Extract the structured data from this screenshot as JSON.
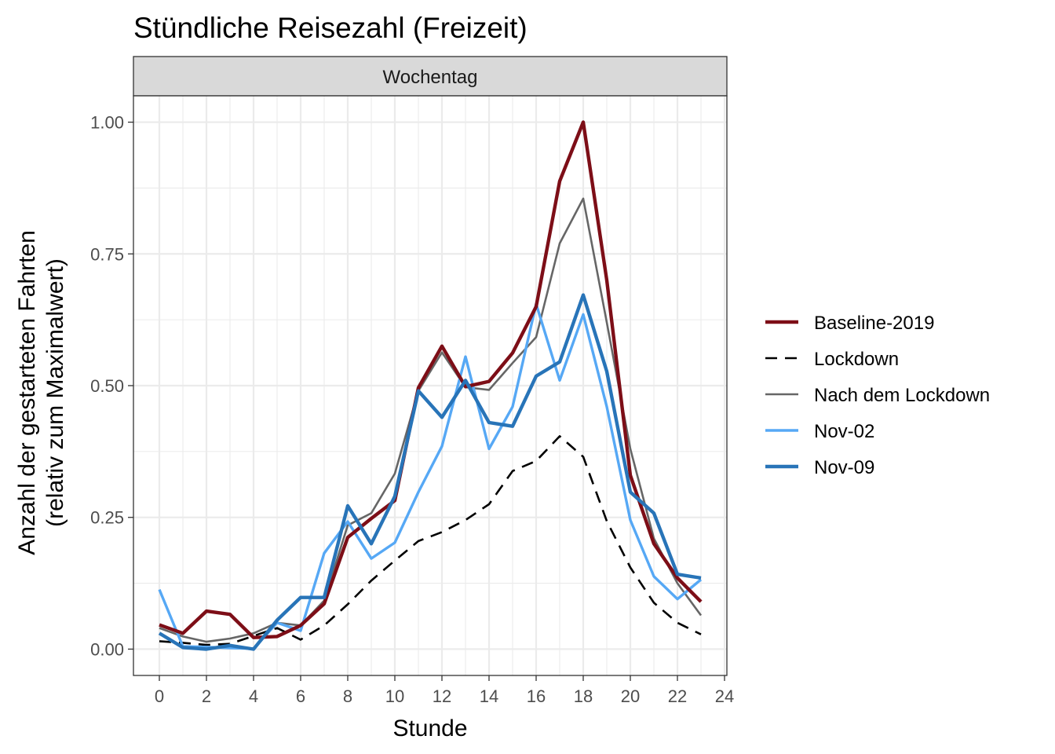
{
  "chart_data": {
    "type": "line",
    "title": "Stündliche Reisezahl (Freizeit)",
    "facet_label": "Wochentag",
    "xlabel": "Stunde",
    "ylabel_lines": [
      "Anzahl der gestarteten Fahrten",
      "(relativ zum Maximalwert)"
    ],
    "xlim": [
      -1.1,
      24.1
    ],
    "ylim": [
      -0.05,
      1.05
    ],
    "x_ticks": [
      0,
      2,
      4,
      6,
      8,
      10,
      12,
      14,
      16,
      18,
      20,
      22,
      24
    ],
    "y_ticks": [
      0,
      0.25,
      0.5,
      0.75,
      1.0
    ],
    "y_tick_labels": [
      "0.00",
      "0.25",
      "0.50",
      "0.75",
      "1.00"
    ],
    "grid": true,
    "legend_position": "right",
    "x": [
      0,
      1,
      2,
      3,
      4,
      5,
      6,
      7,
      8,
      9,
      10,
      11,
      12,
      13,
      14,
      15,
      16,
      17,
      18,
      19,
      20,
      21,
      22,
      23
    ],
    "series": [
      {
        "name": "Lockdown",
        "color": "#000000",
        "style": "dashed",
        "values": [
          0.015,
          0.012,
          0.008,
          0.01,
          0.025,
          0.04,
          0.018,
          0.045,
          0.085,
          0.13,
          0.168,
          0.205,
          0.222,
          0.245,
          0.275,
          0.338,
          0.357,
          0.404,
          0.365,
          0.243,
          0.155,
          0.088,
          0.05,
          0.028
        ]
      },
      {
        "name": "Nach dem Lockdown",
        "color": "#666666",
        "style": "solid-thin",
        "values": [
          0.04,
          0.024,
          0.014,
          0.02,
          0.03,
          0.05,
          0.045,
          0.092,
          0.235,
          0.258,
          0.333,
          0.49,
          0.563,
          0.497,
          0.492,
          0.543,
          0.592,
          0.77,
          0.855,
          0.62,
          0.38,
          0.21,
          0.125,
          0.064
        ]
      },
      {
        "name": "Nov-02",
        "color": "#56a8f5",
        "style": "solid",
        "values": [
          0.113,
          0.005,
          0.004,
          0.002,
          0.001,
          0.05,
          0.035,
          0.182,
          0.242,
          0.172,
          0.202,
          0.298,
          0.385,
          0.555,
          0.38,
          0.46,
          0.655,
          0.51,
          0.635,
          0.46,
          0.245,
          0.138,
          0.095,
          0.132
        ]
      },
      {
        "name": "Baseline-2019",
        "color": "#7d0e17",
        "style": "solid-thick",
        "values": [
          0.046,
          0.03,
          0.072,
          0.066,
          0.022,
          0.024,
          0.045,
          0.086,
          0.212,
          0.248,
          0.282,
          0.496,
          0.575,
          0.498,
          0.508,
          0.562,
          0.65,
          0.888,
          1.0,
          0.7,
          0.33,
          0.2,
          0.135,
          0.09
        ]
      },
      {
        "name": "Nov-09",
        "color": "#2874b8",
        "style": "solid-thick",
        "values": [
          0.03,
          0.003,
          0.0,
          0.007,
          0.0,
          0.055,
          0.098,
          0.098,
          0.272,
          0.2,
          0.29,
          0.49,
          0.44,
          0.51,
          0.43,
          0.423,
          0.518,
          0.545,
          0.672,
          0.527,
          0.298,
          0.258,
          0.142,
          0.135
        ]
      }
    ],
    "legend": [
      {
        "name": "Baseline-2019",
        "color": "#7d0e17",
        "style": "solid-thick"
      },
      {
        "name": "Lockdown",
        "color": "#000000",
        "style": "dashed"
      },
      {
        "name": "Nach dem Lockdown",
        "color": "#666666",
        "style": "solid-thin"
      },
      {
        "name": "Nov-02",
        "color": "#56a8f5",
        "style": "solid"
      },
      {
        "name": "Nov-09",
        "color": "#2874b8",
        "style": "solid-thick"
      }
    ]
  }
}
